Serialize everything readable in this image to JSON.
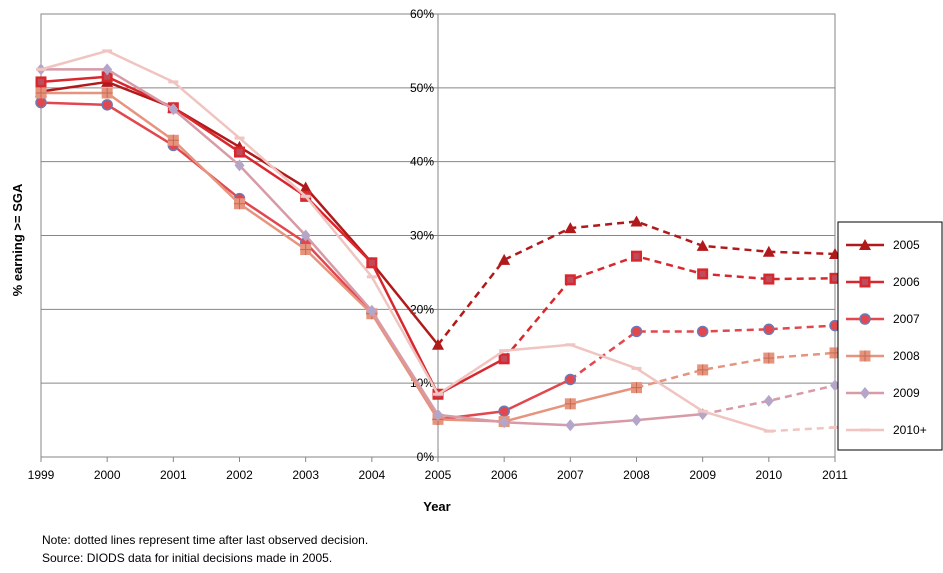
{
  "chart_data": {
    "type": "line",
    "xlabel": "Year",
    "ylabel": "% earning >= SGA",
    "ylim": [
      0,
      60
    ],
    "y_ticks": [
      "0%",
      "10%",
      "20%",
      "30%",
      "40%",
      "50%",
      "60%"
    ],
    "x": [
      1999,
      2000,
      2001,
      2002,
      2003,
      2004,
      2005,
      2006,
      2007,
      2008,
      2009,
      2010,
      2011
    ],
    "grid": "horizontal gridlines and vertical line at 2005",
    "legend_position": "right",
    "series": [
      {
        "name": "2005",
        "color": "#b01a1a",
        "marker": "triangle",
        "values": [
          49.5,
          50.8,
          47.3,
          42.0,
          36.5,
          26.3,
          15.2,
          26.7,
          31.0,
          31.9,
          28.6,
          27.8,
          27.5
        ],
        "solid_until_index": 6
      },
      {
        "name": "2006",
        "color": "#d8282e",
        "marker": "square",
        "values": [
          50.8,
          51.5,
          47.3,
          41.3,
          35.3,
          26.3,
          8.5,
          13.3,
          24.0,
          27.2,
          24.8,
          24.1,
          24.2
        ],
        "solid_until_index": 7
      },
      {
        "name": "2007",
        "color": "#e2474e",
        "marker": "circle",
        "values": [
          48.0,
          47.7,
          42.2,
          35.0,
          29.0,
          19.5,
          5.1,
          6.2,
          10.5,
          17.0,
          17.0,
          17.3,
          17.8
        ],
        "solid_until_index": 8
      },
      {
        "name": "2008",
        "color": "#e6947d",
        "marker": "plus-square",
        "values": [
          49.3,
          49.3,
          42.9,
          34.3,
          28.1,
          19.4,
          5.1,
          4.8,
          7.2,
          9.4,
          11.8,
          13.4,
          14.1
        ],
        "solid_until_index": 9
      },
      {
        "name": "2009",
        "color": "#d79aa6",
        "marker": "diamond",
        "values": [
          52.5,
          52.5,
          47.1,
          39.5,
          30.0,
          19.8,
          5.7,
          4.7,
          4.3,
          5.0,
          5.8,
          7.6,
          9.7
        ],
        "solid_until_index": 10
      },
      {
        "name": "2010+",
        "color": "#f0c4c0",
        "marker": "dash",
        "values": [
          52.5,
          55.0,
          50.8,
          43.2,
          35.3,
          24.4,
          8.5,
          14.4,
          15.2,
          12.0,
          6.2,
          3.5,
          4.0
        ],
        "solid_until_index": 11
      }
    ]
  },
  "notes": {
    "line1": "Note: dotted lines represent time after last observed decision.",
    "line2": "Source: DIODS data for initial decisions made in 2005."
  }
}
